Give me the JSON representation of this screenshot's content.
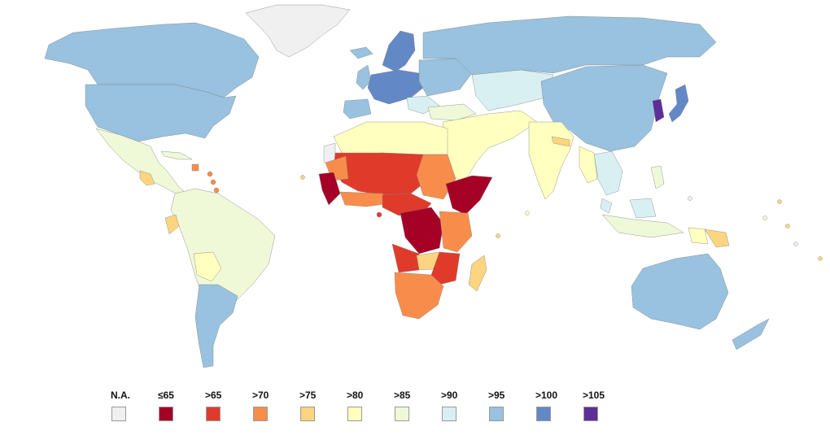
{
  "map": {
    "legend": [
      {
        "label": "N.A.",
        "color": "#f0f0f0"
      },
      {
        "label": "≤65",
        "color": "#a50026"
      },
      {
        "label": ">65",
        "color": "#e03b2a"
      },
      {
        "label": ">70",
        "color": "#f88d4b"
      },
      {
        "label": ">75",
        "color": "#fdd47f"
      },
      {
        "label": ">80",
        "color": "#ffffbf"
      },
      {
        "label": ">85",
        "color": "#eff9d8"
      },
      {
        "label": ">90",
        "color": "#d9f0f3"
      },
      {
        "label": ">95",
        "color": "#98c2df"
      },
      {
        "label": ">100",
        "color": "#6388c6"
      },
      {
        "label": ">105",
        "color": "#5c2e98"
      }
    ]
  }
}
